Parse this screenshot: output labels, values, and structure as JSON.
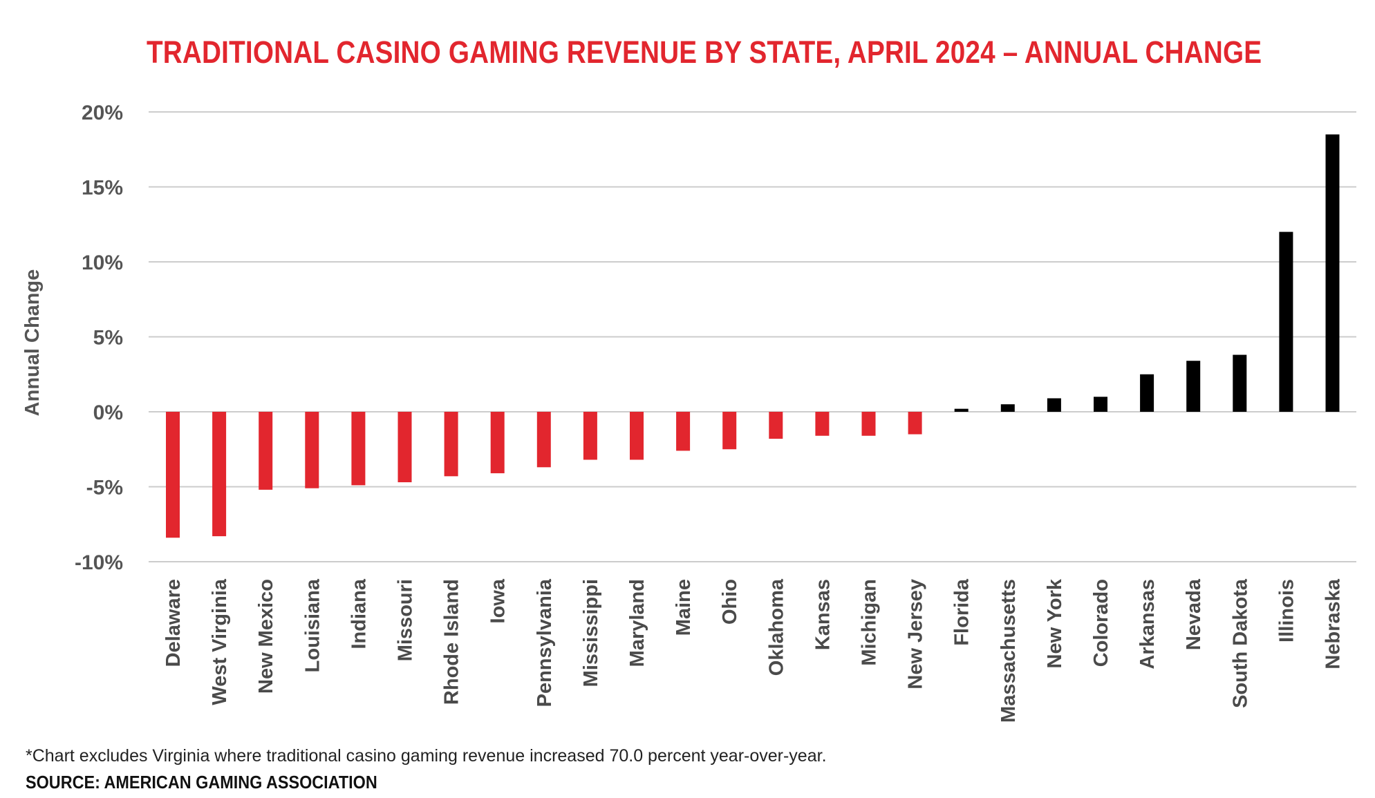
{
  "chart_data": {
    "type": "bar",
    "title": "TRADITIONAL CASINO GAMING REVENUE BY STATE, APRIL 2024 – ANNUAL CHANGE",
    "ylabel": "Annual Change",
    "xlabel": "",
    "ylim": [
      -10,
      20
    ],
    "yticks": [
      -10,
      -5,
      0,
      5,
      10,
      15,
      20
    ],
    "ytick_labels": [
      "-10%",
      "-5%",
      "0%",
      "5%",
      "10%",
      "15%",
      "20%"
    ],
    "grid": true,
    "categories": [
      "Delaware",
      "West Virginia",
      "New Mexico",
      "Louisiana",
      "Indiana",
      "Missouri",
      "Rhode Island",
      "Iowa",
      "Pennsylvania",
      "Mississippi",
      "Maryland",
      "Maine",
      "Ohio",
      "Oklahoma",
      "Kansas",
      "Michigan",
      "New Jersey",
      "Florida",
      "Massachusetts",
      "New York",
      "Colorado",
      "Arkansas",
      "Nevada",
      "South Dakota",
      "Illinois",
      "Nebraska"
    ],
    "values": [
      -8.4,
      -8.3,
      -5.2,
      -5.1,
      -4.9,
      -4.7,
      -4.3,
      -4.1,
      -3.7,
      -3.2,
      -3.2,
      -2.6,
      -2.5,
      -1.8,
      -1.6,
      -1.6,
      -1.5,
      0.2,
      0.5,
      0.9,
      1.0,
      2.5,
      3.4,
      3.8,
      12.0,
      18.5
    ],
    "colors": {
      "negative": "#e2262e",
      "positive": "#000000",
      "grid": "#cccccc"
    }
  },
  "footnote": "*Chart excludes Virginia where traditional casino gaming revenue increased 70.0 percent year-over-year.",
  "source": "SOURCE: AMERICAN GAMING ASSOCIATION"
}
